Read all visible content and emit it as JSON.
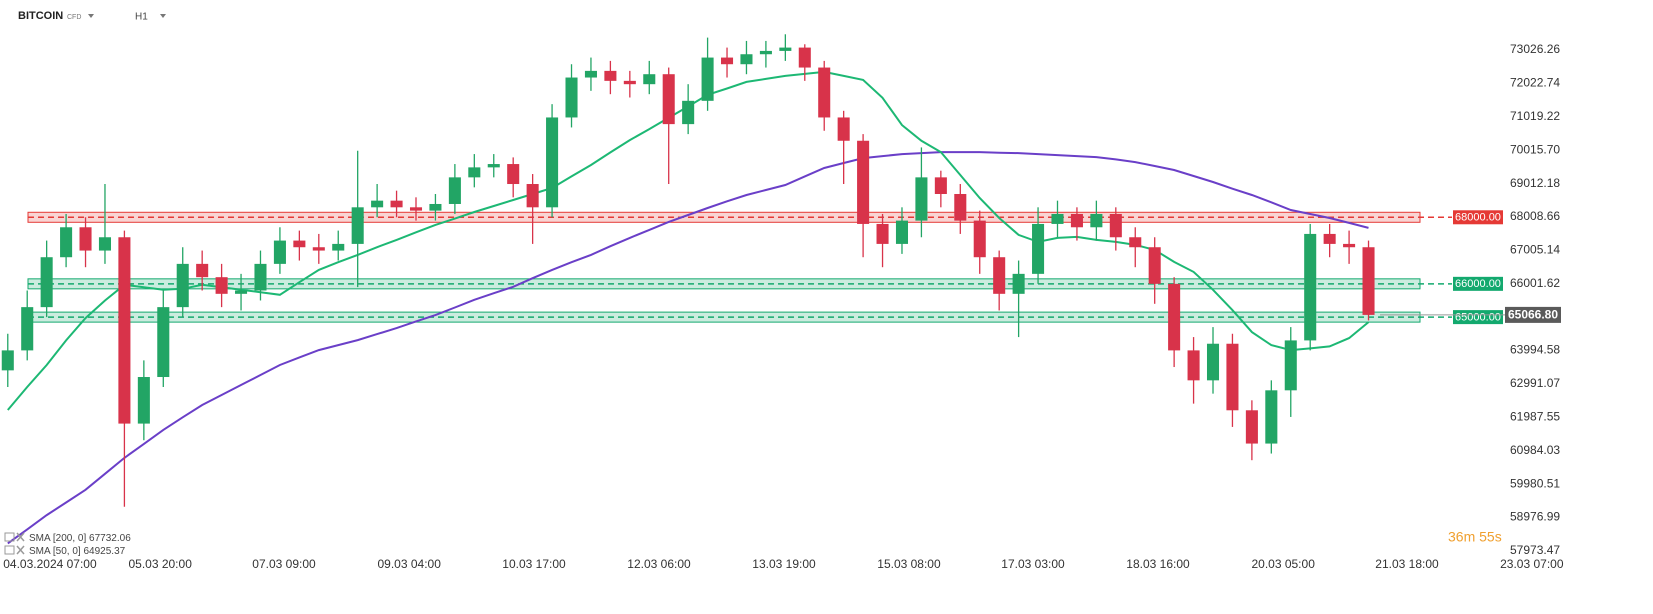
{
  "chart_data": {
    "type": "candlestick",
    "title": "BITCOIN",
    "subtitle": "CFD",
    "timeframe": "H1",
    "timer": "36m 55s",
    "up_color": "#22a565",
    "down_color": "#d8334a",
    "open": [
      63400,
      64000,
      65300,
      66800,
      67700,
      67000,
      67400,
      61800,
      63200,
      65300,
      66600,
      66200,
      65700,
      65800,
      66600,
      67300,
      67100,
      67000,
      67200,
      68300,
      68500,
      68300,
      68200,
      68400,
      69200,
      69500,
      69600,
      69000,
      68300,
      71000,
      72200,
      72400,
      72100,
      72000,
      72300,
      70800,
      71500,
      72800,
      72600,
      72900,
      73000,
      73100,
      72500,
      71000,
      70300,
      67800,
      67200,
      67900,
      69200,
      68700,
      67900,
      66800,
      65700,
      66300,
      67800,
      68100,
      67700,
      68100,
      67400,
      67100,
      66000,
      64000,
      63100,
      64200,
      62200,
      61200,
      62800,
      64300,
      67500,
      67200,
      67100
    ],
    "high": [
      64500,
      65800,
      67300,
      68100,
      68000,
      69000,
      67600,
      63700,
      65800,
      67100,
      67000,
      66600,
      66300,
      67000,
      67700,
      67600,
      67500,
      67600,
      70000,
      69000,
      68800,
      68600,
      68700,
      69600,
      69900,
      69900,
      69800,
      69300,
      71400,
      72600,
      72800,
      72700,
      72400,
      72700,
      72500,
      72000,
      73400,
      73100,
      73300,
      73300,
      73500,
      73200,
      72700,
      71200,
      70500,
      68100,
      68300,
      70100,
      69400,
      69000,
      68200,
      67000,
      66700,
      68300,
      68500,
      68300,
      68500,
      68300,
      67700,
      67400,
      66200,
      64400,
      64700,
      64500,
      62500,
      63100,
      64700,
      67800,
      67800,
      67600,
      67300
    ],
    "low": [
      62900,
      63700,
      65000,
      66500,
      66500,
      66600,
      59300,
      61300,
      62900,
      65000,
      65800,
      65300,
      65200,
      65500,
      66300,
      66700,
      66600,
      66700,
      65900,
      68000,
      68000,
      67900,
      67900,
      68100,
      68900,
      69200,
      68600,
      67200,
      68000,
      70700,
      71800,
      71700,
      71600,
      71700,
      69000,
      70500,
      71200,
      72200,
      72300,
      72500,
      72700,
      72100,
      70600,
      69000,
      66800,
      66500,
      66900,
      67400,
      68300,
      67500,
      66300,
      65200,
      64400,
      66000,
      67400,
      67300,
      67300,
      67000,
      66500,
      65400,
      63500,
      62400,
      62700,
      61700,
      60700,
      60900,
      62000,
      64000,
      66800,
      66600,
      64900
    ],
    "close": [
      64000,
      65300,
      66800,
      67700,
      67000,
      67400,
      61800,
      63200,
      65300,
      66600,
      66200,
      65700,
      65800,
      66600,
      67300,
      67100,
      67000,
      67200,
      68300,
      68500,
      68300,
      68200,
      68400,
      69200,
      69500,
      69600,
      69000,
      68300,
      71000,
      72200,
      72400,
      72100,
      72000,
      72300,
      70800,
      71500,
      72800,
      72600,
      72900,
      73000,
      73100,
      72500,
      71000,
      70300,
      67800,
      67200,
      67900,
      69200,
      68700,
      67900,
      66800,
      65700,
      66300,
      67800,
      68100,
      67700,
      68100,
      67400,
      67100,
      66000,
      64000,
      63100,
      64200,
      62200,
      61200,
      62800,
      64300,
      67500,
      67200,
      67100,
      65066.8
    ],
    "series": [
      {
        "name": "SMA [200, 0]",
        "last_value": 67732.06,
        "color": "#6a3fc8",
        "values": [
          58200,
          58620,
          59050,
          59430,
          59810,
          60290,
          60770,
          61190,
          61610,
          61990,
          62360,
          62660,
          62960,
          63260,
          63560,
          63790,
          64010,
          64160,
          64310,
          64490,
          64670,
          64870,
          65060,
          65290,
          65520,
          65720,
          65910,
          66170,
          66420,
          66650,
          66870,
          67130,
          67380,
          67620,
          67860,
          68070,
          68280,
          68480,
          68670,
          68820,
          68970,
          69230,
          69480,
          69630,
          69780,
          69840,
          69900,
          69930,
          69960,
          69960,
          69960,
          69940,
          69930,
          69900,
          69870,
          69840,
          69810,
          69740,
          69660,
          69540,
          69420,
          69240,
          69060,
          68860,
          68670,
          68450,
          68220,
          68100,
          67980,
          67830,
          67680
        ]
      },
      {
        "name": "SMA [50, 0]",
        "last_value": 64925.37,
        "color": "#1db874",
        "values": [
          62210,
          62900,
          63560,
          64300,
          64970,
          65500,
          65970,
          65900,
          65820,
          65850,
          65970,
          65900,
          65820,
          65750,
          65670,
          66050,
          66420,
          66650,
          66870,
          67100,
          67320,
          67550,
          67770,
          67960,
          68160,
          68340,
          68520,
          68700,
          68880,
          69230,
          69570,
          69950,
          70320,
          70650,
          70990,
          71330,
          71680,
          71870,
          72070,
          72160,
          72250,
          72310,
          72370,
          72250,
          72130,
          71590,
          70770,
          70300,
          69960,
          69270,
          68580,
          67980,
          67470,
          67260,
          67380,
          67410,
          67320,
          67260,
          67170,
          67020,
          66660,
          66360,
          65820,
          65210,
          64550,
          64160,
          64010,
          64060,
          64120,
          64370,
          64850
        ]
      }
    ],
    "levels": [
      {
        "value": 68000,
        "label": "68000.00",
        "color": "#e53935"
      },
      {
        "value": 66000,
        "label": "66000.00",
        "color": "#13a96e"
      },
      {
        "value": 65000,
        "label": "65000.00",
        "color": "#13a96e"
      }
    ],
    "last_price": {
      "value": 65066.8,
      "label": "65066.80"
    },
    "xlim": [
      -0.4,
      79.85
    ],
    "xticks": [
      {
        "value": 2.17,
        "label": "04.03.2024  07:00"
      },
      {
        "value": 7.84,
        "label": "05.03  20:00"
      },
      {
        "value": 14.21,
        "label": "07.03  09:00"
      },
      {
        "value": 20.65,
        "label": "09.03  04:00"
      },
      {
        "value": 27.07,
        "label": "10.03  17:00"
      },
      {
        "value": 33.5,
        "label": "12.03  06:00"
      },
      {
        "value": 39.93,
        "label": "13.03  19:00"
      },
      {
        "value": 46.36,
        "label": "15.03  08:00"
      },
      {
        "value": 52.74,
        "label": "17.03  03:00"
      },
      {
        "value": 59.17,
        "label": "18.03  16:00"
      },
      {
        "value": 65.61,
        "label": "20.03  05:00"
      },
      {
        "value": 71.98,
        "label": "21.03  18:00"
      },
      {
        "value": 78.4,
        "label": "23.03  07:00"
      }
    ],
    "ylim": [
      57250,
      74530
    ],
    "yticks": [
      73026.26,
      72022.74,
      71019.22,
      {
        "value": 70015.7,
        "label": "70015.70"
      },
      69012.18,
      68008.66,
      67005.14,
      66001.62,
      63994.58,
      62991.07,
      61987.55,
      60984.03,
      59980.51,
      58976.99,
      57973.47
    ]
  }
}
